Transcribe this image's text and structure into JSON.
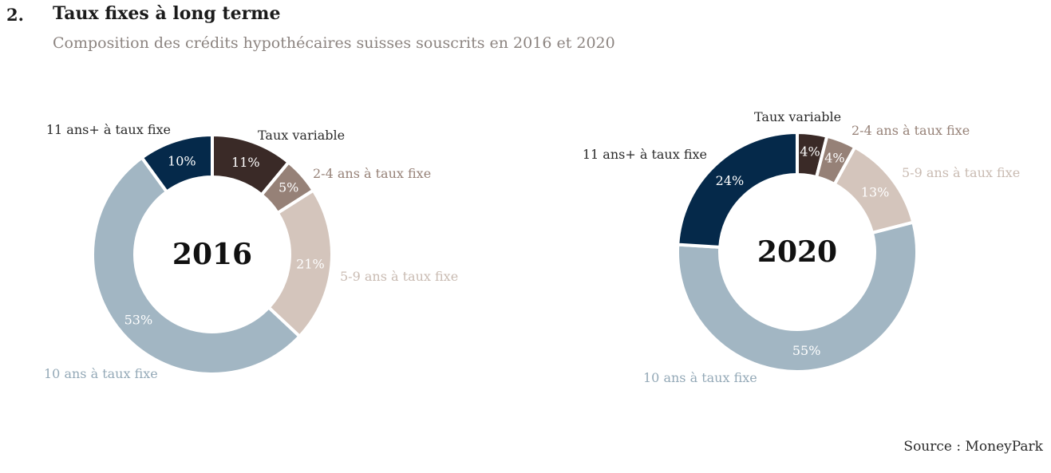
{
  "header": {
    "number": "2.",
    "title": "Taux fixes à long terme",
    "subtitle": "Composition des crédits hypothécaires suisses souscrits en 2016 et 2020"
  },
  "source": "Source : MoneyPark",
  "colors": {
    "11 ans+ à taux fixe": "#05294a",
    "Taux variable": "#3a2a27",
    "2-4 ans à taux fixe": "#968177",
    "5-9 ans à taux fixe": "#d4c5bc",
    "10 ans à taux fixe": "#a2b6c3"
  },
  "chart_data": [
    {
      "type": "donut",
      "center_label": "2016",
      "categories": [
        "Taux variable",
        "2-4 ans à taux fixe",
        "5-9 ans à taux fixe",
        "10 ans à taux fixe",
        "11 ans+ à taux fixe"
      ],
      "values": [
        11,
        5,
        21,
        53,
        10
      ],
      "value_labels": [
        "11%",
        "5%",
        "21%",
        "53%",
        "10%"
      ]
    },
    {
      "type": "donut",
      "center_label": "2020",
      "categories": [
        "Taux variable",
        "2-4 ans à taux fixe",
        "5-9 ans à taux fixe",
        "10 ans à taux fixe",
        "11 ans+ à taux fixe"
      ],
      "values": [
        4,
        4,
        13,
        55,
        24
      ],
      "value_labels": [
        "4%",
        "4%",
        "13%",
        "55%",
        "24%"
      ]
    }
  ]
}
